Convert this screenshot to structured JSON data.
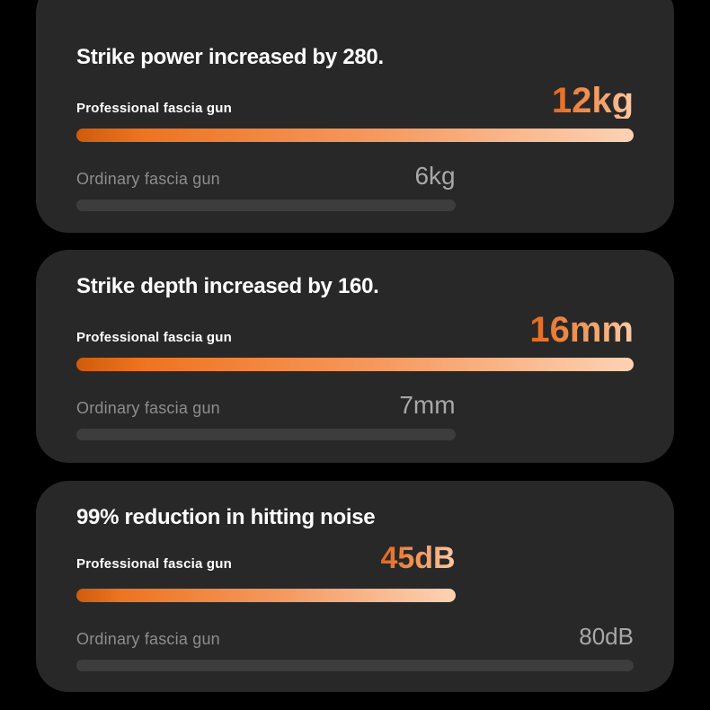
{
  "page": {
    "background": "#000000",
    "card_background": "#282828",
    "accent_orange_start": "#e2661a",
    "accent_orange_end": "#fdd2b4",
    "ordinary_bar_color": "#3d3d3d",
    "ordinary_text_color": "#8d8d8d"
  },
  "cards": [
    {
      "title": "Strike power increased by 280.",
      "pro": {
        "label": "Professional fascia gun",
        "value": "12kg",
        "bar_percent": 100
      },
      "ord": {
        "label": "Ordinary fascia gun",
        "value": "6kg",
        "bar_percent": 68
      }
    },
    {
      "title": "Strike depth increased by 160.",
      "pro": {
        "label": "Professional fascia gun",
        "value": "16mm",
        "bar_percent": 100
      },
      "ord": {
        "label": "Ordinary fascia gun",
        "value": "7mm",
        "bar_percent": 68
      }
    },
    {
      "title": "99% reduction in hitting noise",
      "pro": {
        "label": "Professional fascia gun",
        "value": "45dB",
        "bar_percent": 68
      },
      "ord": {
        "label": "Ordinary fascia gun",
        "value": "80dB",
        "bar_percent": 100
      }
    }
  ],
  "chart_data": [
    {
      "type": "bar",
      "orientation": "horizontal",
      "title": "Strike power increased by 280.",
      "categories": [
        "Professional fascia gun",
        "Ordinary fascia gun"
      ],
      "values": [
        12,
        6
      ],
      "unit": "kg",
      "value_labels": [
        "12kg",
        "6kg"
      ],
      "bar_length_percent": [
        100,
        68
      ],
      "series_colors": [
        "orange-gradient",
        "#3d3d3d"
      ],
      "grid": false,
      "legend": false
    },
    {
      "type": "bar",
      "orientation": "horizontal",
      "title": "Strike depth increased by 160.",
      "categories": [
        "Professional fascia gun",
        "Ordinary fascia gun"
      ],
      "values": [
        16,
        7
      ],
      "unit": "mm",
      "value_labels": [
        "16mm",
        "7mm"
      ],
      "bar_length_percent": [
        100,
        68
      ],
      "series_colors": [
        "orange-gradient",
        "#3d3d3d"
      ],
      "grid": false,
      "legend": false
    },
    {
      "type": "bar",
      "orientation": "horizontal",
      "title": "99% reduction in hitting noise",
      "categories": [
        "Professional fascia gun",
        "Ordinary fascia gun"
      ],
      "values": [
        45,
        80
      ],
      "unit": "dB",
      "value_labels": [
        "45dB",
        "80dB"
      ],
      "bar_length_percent": [
        68,
        100
      ],
      "series_colors": [
        "orange-gradient",
        "#3d3d3d"
      ],
      "grid": false,
      "legend": false
    }
  ]
}
